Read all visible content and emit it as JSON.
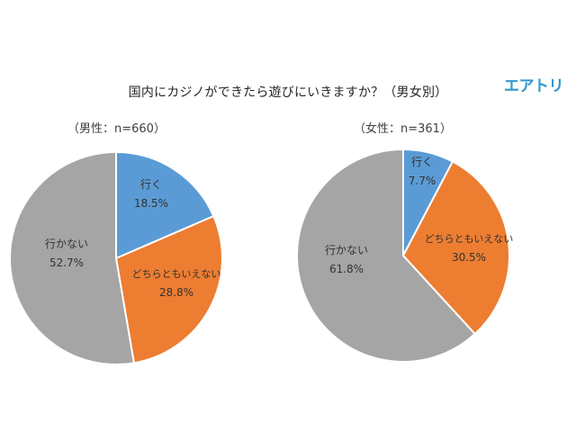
{
  "title": "国内にカジノができたら遊びにいきますか？（男女別）",
  "logo": "エアトリ",
  "colors": {
    "go": "#5b9bd5",
    "neither": "#ed7d31",
    "notgo": "#a5a5a5"
  },
  "chart_data": [
    {
      "type": "pie",
      "subtitle": "（男性：n=660）",
      "slices": [
        {
          "label": "行く",
          "value": 18.5,
          "value_label": "18.5%"
        },
        {
          "label": "どちらともいえない",
          "value": 28.8,
          "value_label": "28.8%"
        },
        {
          "label": "行かない",
          "value": 52.7,
          "value_label": "52.7%"
        }
      ]
    },
    {
      "type": "pie",
      "subtitle": "（女性：n=361）",
      "slices": [
        {
          "label": "行く",
          "value": 7.7,
          "value_label": "7.7%"
        },
        {
          "label": "どちらともいえない",
          "value": 30.5,
          "value_label": "30.5%"
        },
        {
          "label": "行かない",
          "value": 61.8,
          "value_label": "61.8%"
        }
      ]
    }
  ]
}
